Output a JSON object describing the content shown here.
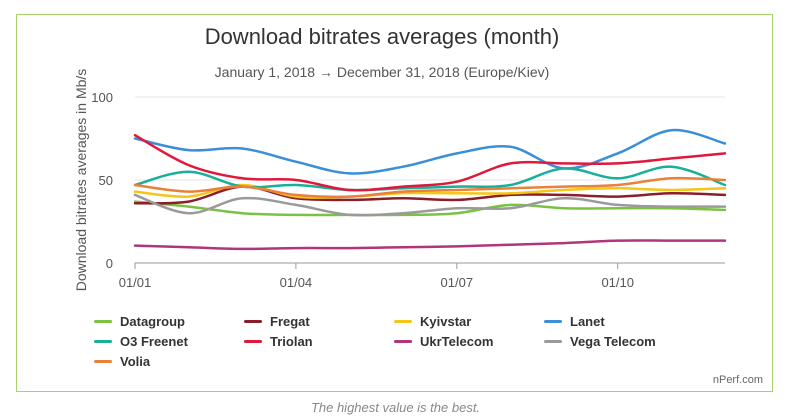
{
  "chart_data": {
    "type": "line",
    "title": "Download bitrates averages (month)",
    "subtitle": "January 1, 2018 → December 31, 2018 (Europe/Kiev)",
    "ylabel": "Download bitrates averages in Mb/s",
    "ylim": [
      0,
      100
    ],
    "yticks": [
      0,
      50,
      100
    ],
    "xticks": [
      "01/01",
      "01/04",
      "01/07",
      "01/10"
    ],
    "x": [
      0,
      1,
      2,
      3,
      4,
      5,
      6,
      7,
      8,
      9,
      10,
      11
    ],
    "xtick_positions": [
      0,
      3,
      6,
      9
    ],
    "series": [
      {
        "name": "Datagroup",
        "color": "#7cc242",
        "values": [
          37,
          34,
          30,
          29,
          29,
          29,
          30,
          35,
          33,
          33,
          33,
          32
        ]
      },
      {
        "name": "Fregat",
        "color": "#8b1e2b",
        "values": [
          36,
          37,
          46,
          39,
          38,
          39,
          38,
          41,
          41,
          40,
          42,
          41
        ]
      },
      {
        "name": "Kyivstar",
        "color": "#f5c518",
        "values": [
          43,
          40,
          47,
          40,
          40,
          42,
          42,
          42,
          44,
          45,
          44,
          45
        ]
      },
      {
        "name": "Lanet",
        "color": "#3a8fd8",
        "values": [
          75,
          68,
          69,
          61,
          54,
          58,
          66,
          70,
          57,
          66,
          80,
          72
        ]
      },
      {
        "name": "O3 Freenet",
        "color": "#1aaf9a",
        "values": [
          47,
          55,
          46,
          47,
          44,
          45,
          46,
          47,
          57,
          51,
          58,
          47
        ]
      },
      {
        "name": "Triolan",
        "color": "#e0183c",
        "values": [
          77,
          59,
          51,
          50,
          44,
          46,
          49,
          60,
          60,
          60,
          63,
          66
        ]
      },
      {
        "name": "UkrTelecom",
        "color": "#b0357a",
        "values": [
          10.5,
          9.5,
          8.5,
          9,
          9,
          9.5,
          10,
          11,
          12,
          13.5,
          13.5,
          13.5
        ]
      },
      {
        "name": "Vega Telecom",
        "color": "#9a9a9a",
        "values": [
          41,
          30,
          39,
          35,
          29,
          30,
          33,
          33,
          39,
          35,
          34,
          34
        ]
      },
      {
        "name": "Volia",
        "color": "#e8823a",
        "values": [
          47,
          43,
          46,
          41,
          40,
          43,
          44,
          45,
          46,
          47,
          51,
          50
        ]
      }
    ]
  },
  "credit": "nPerf.com",
  "caption": "The highest value is the best."
}
